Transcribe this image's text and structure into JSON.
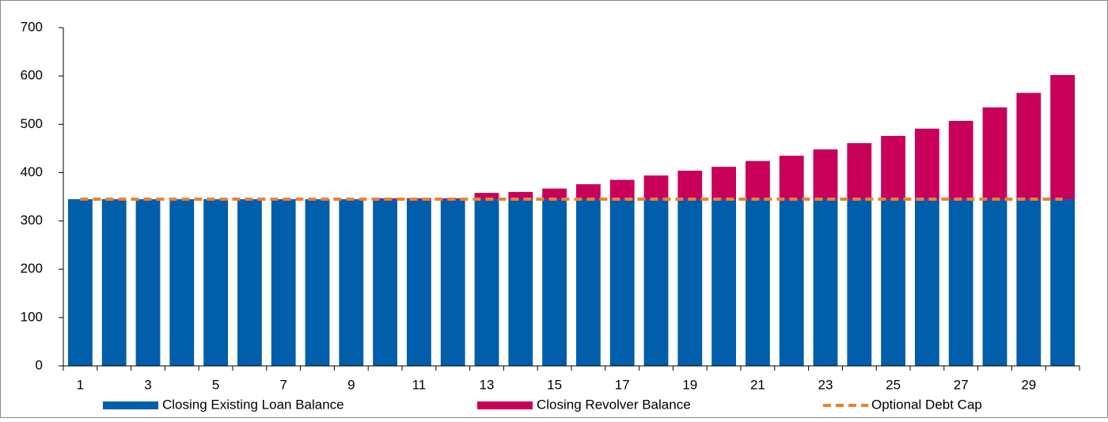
{
  "chart_data": {
    "type": "bar",
    "stacked": true,
    "categories": [
      "1",
      null,
      "3",
      null,
      "5",
      null,
      "7",
      null,
      "9",
      null,
      "11",
      null,
      "13",
      null,
      "15",
      null,
      "17",
      null,
      "19",
      null,
      "21",
      null,
      "23",
      null,
      "25",
      null,
      "27",
      null,
      "29",
      null
    ],
    "series": [
      {
        "name": "Closing Existing Loan Balance",
        "type": "bar",
        "color": "#005eaa",
        "values": [
          345,
          345,
          345,
          345,
          345,
          345,
          345,
          345,
          345,
          345,
          345,
          345,
          345,
          345,
          345,
          345,
          345,
          345,
          345,
          345,
          345,
          345,
          345,
          345,
          345,
          345,
          345,
          345,
          345,
          345
        ]
      },
      {
        "name": "Closing Revolver Balance",
        "type": "bar",
        "color": "#c8005a",
        "values": [
          0,
          0,
          0,
          0,
          0,
          0,
          0,
          0,
          0,
          2,
          2,
          2,
          13,
          15,
          22,
          31,
          40,
          49,
          59,
          67,
          79,
          90,
          103,
          116,
          131,
          146,
          162,
          190,
          220,
          257
        ]
      },
      {
        "name": "Optional Debt Cap",
        "type": "line",
        "color": "#f08030",
        "dashed": true,
        "values": [
          345,
          345,
          345,
          345,
          345,
          345,
          345,
          345,
          345,
          345,
          345,
          345,
          345,
          345,
          345,
          345,
          345,
          345,
          345,
          345,
          345,
          345,
          345,
          345,
          345,
          345,
          345,
          345,
          345,
          345
        ]
      }
    ],
    "ylim": [
      0,
      700
    ],
    "yticks": [
      0,
      100,
      200,
      300,
      400,
      500,
      600,
      700
    ],
    "grid": false,
    "legend": "bottom"
  }
}
